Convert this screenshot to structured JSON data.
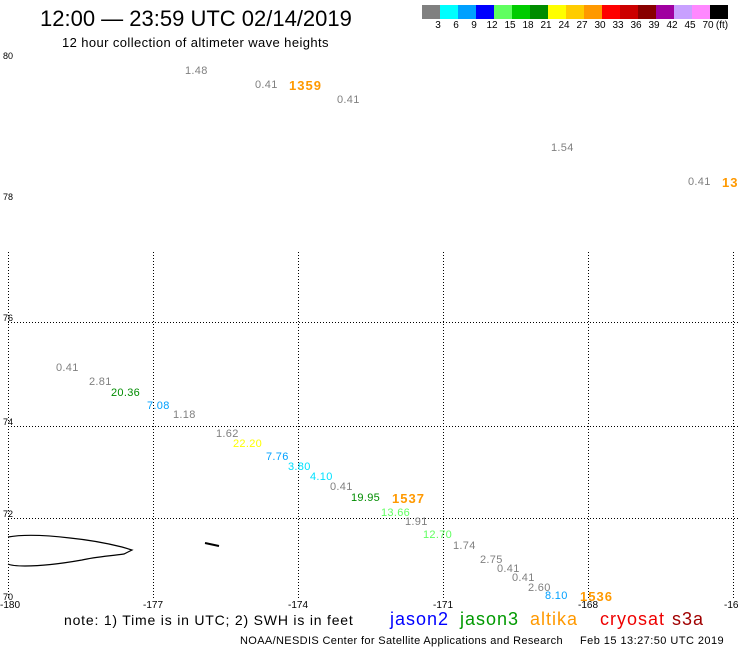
{
  "header": {
    "title": "12:00 — 23:59 UTC 02/14/2019",
    "subtitle": "12 hour collection of altimeter wave heights"
  },
  "color_scale": {
    "colors": [
      "#808080",
      "#00ffff",
      "#00a0ff",
      "#0000ff",
      "#60ff60",
      "#00cc00",
      "#008c00",
      "#ffff00",
      "#ffcc00",
      "#ff9900",
      "#ff0000",
      "#cc0000",
      "#880000",
      "#a000a0",
      "#c8a0ff",
      "#ff88ff",
      "#000000"
    ],
    "labels": [
      "3",
      "6",
      "9",
      "12",
      "15",
      "18",
      "21",
      "24",
      "27",
      "30",
      "33",
      "36",
      "39",
      "42",
      "45",
      "70"
    ],
    "unit": "(ft)"
  },
  "map": {
    "lat_labels": [
      "80",
      "78",
      "76",
      "74",
      "72",
      "70"
    ],
    "lon_labels": [
      "-180",
      "-177",
      "-174",
      "-171",
      "-168",
      "-16"
    ],
    "wave_labels": [
      {
        "text": "1.48",
        "color": "#808080"
      },
      {
        "text": "0.41",
        "color": "#808080"
      },
      {
        "text": "1359",
        "color": "#ff9900"
      },
      {
        "text": "0.41",
        "color": "#808080"
      },
      {
        "text": "1.54",
        "color": "#808080"
      },
      {
        "text": "0.41",
        "color": "#808080"
      },
      {
        "text": "13",
        "color": "#ff9900"
      },
      {
        "text": "0.41",
        "color": "#808080"
      },
      {
        "text": "2.81",
        "color": "#808080"
      },
      {
        "text": "20.36",
        "color": "#008c00"
      },
      {
        "text": "7.08",
        "color": "#00a0ff"
      },
      {
        "text": "1.18",
        "color": "#808080"
      },
      {
        "text": "1.62",
        "color": "#808080"
      },
      {
        "text": "22.20",
        "color": "#ffff00"
      },
      {
        "text": "7.76",
        "color": "#00a0ff"
      },
      {
        "text": "3.80",
        "color": "#00e0ff"
      },
      {
        "text": "4.10",
        "color": "#00e0ff"
      },
      {
        "text": "0.41",
        "color": "#808080"
      },
      {
        "text": "19.95",
        "color": "#008c00"
      },
      {
        "text": "1537",
        "color": "#ff9900"
      },
      {
        "text": "13.66",
        "color": "#60ff60"
      },
      {
        "text": "1.91",
        "color": "#808080"
      },
      {
        "text": "12.70",
        "color": "#60ff60"
      },
      {
        "text": "1.74",
        "color": "#808080"
      },
      {
        "text": "2.75",
        "color": "#808080"
      },
      {
        "text": "0.41",
        "color": "#808080"
      },
      {
        "text": "0.41",
        "color": "#808080"
      },
      {
        "text": "2.60",
        "color": "#808080"
      },
      {
        "text": "8.10",
        "color": "#00a0ff"
      },
      {
        "text": "1536",
        "color": "#ff9900"
      }
    ]
  },
  "legend": {
    "note": "note: 1) Time is in UTC; 2) SWH is in feet",
    "satellites": [
      {
        "name": "jason2",
        "color": "#0000ff"
      },
      {
        "name": "jason3",
        "color": "#009900"
      },
      {
        "name": "altika",
        "color": "#ff9900"
      },
      {
        "name": "cryosat",
        "color": "#ee0000"
      },
      {
        "name": "s3a",
        "color": "#a00000"
      }
    ]
  },
  "footer": {
    "credit": "NOAA/NESDIS Center for Satellite Applications and Research",
    "timestamp": "Feb 15 13:27:50 UTC 2019"
  }
}
